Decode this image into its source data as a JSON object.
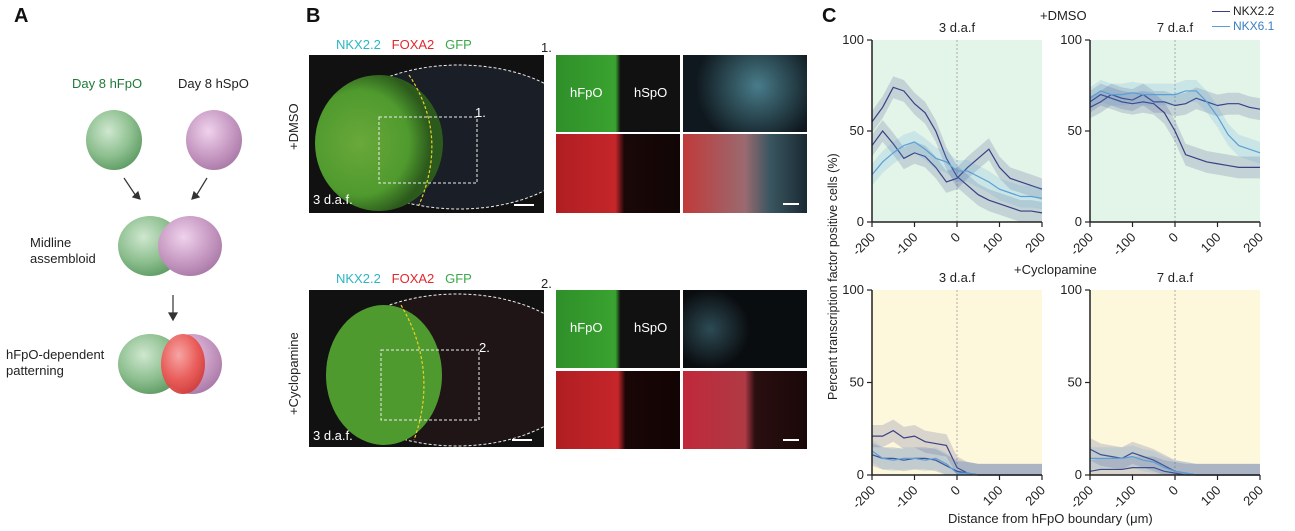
{
  "panelA": {
    "label": "A",
    "fpo_label": "Day 8 hFpO",
    "spo_label": "Day 8 hSpO",
    "midline_label": "Midline\nassembloid",
    "pattern_label": "hFpO-dependent\npatterning"
  },
  "panelB": {
    "label": "B",
    "dmso": {
      "condition": "+DMSO",
      "stain_nkx": "NKX2.2",
      "stain_foxa": "FOXA2",
      "stain_gfp": "GFP",
      "time": "3 d.a.f.",
      "roi": "1.",
      "inset_num": "1.",
      "hfpo": "hFpO",
      "hspo": "hSpO"
    },
    "cyclo": {
      "condition": "+Cyclopamine",
      "stain_nkx": "NKX2.2",
      "stain_foxa": "FOXA2",
      "stain_gfp": "GFP",
      "time": "3 d.a.f.",
      "roi": "2.",
      "inset_num": "2.",
      "hfpo": "hFpO",
      "hspo": "hSpO"
    }
  },
  "panelC": {
    "label": "C",
    "legend": [
      {
        "name": "NKX2.2",
        "color": "#3a3f85"
      },
      {
        "name": "NKX6.1",
        "color": "#5a9fd8"
      }
    ],
    "dmso_title": "+DMSO",
    "cyclo_title": "+Cyclopamine",
    "ylabel": "Percent transcription factor positive cells (%)",
    "xlabel": "Distance from hFpO boundary (μm)",
    "colors": {
      "dmso_bg": "#e3f4e8",
      "cyclo_bg": "#fdf7dc",
      "nkx22": "#3a3f85",
      "nkx61": "#5a9fd8"
    }
  },
  "chart_data": [
    {
      "type": "line",
      "title": "3 d.a.f",
      "condition": "+DMSO",
      "x": [
        -200,
        -175,
        -150,
        -125,
        -100,
        -75,
        -50,
        -25,
        0,
        25,
        50,
        75,
        100,
        125,
        150,
        175,
        200
      ],
      "xlim": [
        -200,
        200
      ],
      "ylim": [
        0,
        100
      ],
      "xticks": [
        "-200",
        "-100",
        "0",
        "100",
        "200"
      ],
      "yticks": [
        "0",
        "50",
        "100"
      ],
      "series": [
        {
          "name": "NKX2.2",
          "values": [
            55,
            63,
            74,
            72,
            65,
            60,
            50,
            35,
            25,
            20,
            15,
            12,
            10,
            8,
            6,
            6,
            5
          ]
        },
        {
          "name": "NKX2.2",
          "values": [
            42,
            50,
            43,
            35,
            38,
            36,
            30,
            22,
            24,
            30,
            35,
            40,
            30,
            24,
            22,
            20,
            18
          ]
        },
        {
          "name": "NKX6.1",
          "values": [
            26,
            33,
            38,
            42,
            44,
            40,
            35,
            33,
            28,
            28,
            25,
            22,
            18,
            16,
            14,
            14,
            13
          ]
        }
      ]
    },
    {
      "type": "line",
      "title": "7 d.a.f",
      "condition": "+DMSO",
      "x": [
        -200,
        -175,
        -150,
        -125,
        -100,
        -75,
        -50,
        -25,
        0,
        25,
        50,
        75,
        100,
        125,
        150,
        175,
        200
      ],
      "xlim": [
        -200,
        200
      ],
      "ylim": [
        0,
        100
      ],
      "xticks": [
        "-200",
        "-100",
        "0",
        "100",
        "200"
      ],
      "yticks": [
        "0",
        "50",
        "100"
      ],
      "series": [
        {
          "name": "NKX2.2",
          "values": [
            66,
            70,
            68,
            66,
            65,
            66,
            65,
            60,
            50,
            37,
            35,
            33,
            32,
            31,
            30,
            30,
            30
          ]
        },
        {
          "name": "NKX2.2",
          "values": [
            63,
            66,
            70,
            68,
            67,
            70,
            66,
            66,
            64,
            65,
            68,
            66,
            64,
            65,
            65,
            63,
            62
          ]
        },
        {
          "name": "NKX6.1",
          "values": [
            68,
            72,
            70,
            70,
            71,
            70,
            70,
            70,
            70,
            72,
            72,
            66,
            58,
            48,
            42,
            40,
            38
          ]
        }
      ]
    },
    {
      "type": "line",
      "title": "3 d.a.f",
      "condition": "+Cyclopamine",
      "x": [
        -200,
        -175,
        -150,
        -125,
        -100,
        -75,
        -50,
        -25,
        0,
        25,
        50,
        75,
        100,
        125,
        150,
        175,
        200
      ],
      "xlim": [
        -200,
        200
      ],
      "ylim": [
        0,
        100
      ],
      "xticks": [
        "-200",
        "-100",
        "0",
        "100",
        "200"
      ],
      "yticks": [
        "0",
        "50",
        "100"
      ],
      "series": [
        {
          "name": "NKX2.2",
          "values": [
            21,
            21,
            24,
            20,
            21,
            18,
            17,
            16,
            4,
            1,
            0,
            0,
            0,
            0,
            0,
            0,
            0
          ]
        },
        {
          "name": "NKX2.2",
          "values": [
            11,
            9,
            9,
            8,
            9,
            9,
            8,
            5,
            2,
            1,
            0,
            0,
            0,
            0,
            0,
            0,
            0
          ]
        },
        {
          "name": "NKX6.1",
          "values": [
            13,
            9,
            8,
            9,
            9,
            8,
            9,
            6,
            1,
            1,
            0,
            0,
            0,
            0,
            0,
            0,
            0
          ]
        }
      ]
    },
    {
      "type": "line",
      "title": "7 d.a.f",
      "condition": "+Cyclopamine",
      "x": [
        -200,
        -175,
        -150,
        -125,
        -100,
        -75,
        -50,
        -25,
        0,
        25,
        50,
        75,
        100,
        125,
        150,
        175,
        200
      ],
      "xlim": [
        -200,
        200
      ],
      "ylim": [
        0,
        100
      ],
      "xticks": [
        "-200",
        "-100",
        "0",
        "100",
        "200"
      ],
      "yticks": [
        "0",
        "50",
        "100"
      ],
      "series": [
        {
          "name": "NKX2.2",
          "values": [
            14,
            11,
            10,
            9,
            12,
            10,
            8,
            5,
            2,
            1,
            0,
            0,
            0,
            0,
            0,
            0,
            0
          ]
        },
        {
          "name": "NKX2.2",
          "values": [
            2,
            3,
            3,
            3,
            4,
            4,
            4,
            2,
            1,
            0,
            0,
            0,
            0,
            0,
            0,
            0,
            0
          ]
        },
        {
          "name": "NKX6.1",
          "values": [
            9,
            9,
            9,
            9,
            10,
            8,
            7,
            4,
            2,
            1,
            0,
            0,
            0,
            0,
            0,
            0,
            0
          ]
        }
      ]
    }
  ]
}
